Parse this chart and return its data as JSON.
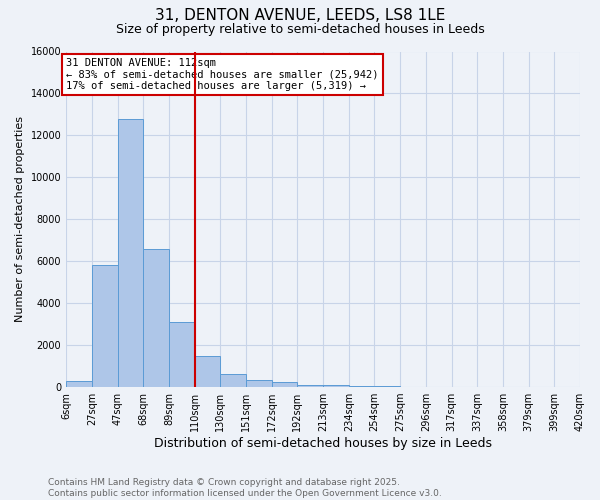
{
  "title": "31, DENTON AVENUE, LEEDS, LS8 1LE",
  "subtitle": "Size of property relative to semi-detached houses in Leeds",
  "xlabel": "Distribution of semi-detached houses by size in Leeds",
  "ylabel": "Number of semi-detached properties",
  "footer_line1": "Contains HM Land Registry data © Crown copyright and database right 2025.",
  "footer_line2": "Contains public sector information licensed under the Open Government Licence v3.0.",
  "bar_heights": [
    300,
    5800,
    12800,
    6600,
    3100,
    1500,
    620,
    320,
    220,
    120,
    90,
    60,
    50,
    0,
    0,
    0,
    0,
    0,
    0,
    0
  ],
  "tick_labels": [
    "6sqm",
    "27sqm",
    "47sqm",
    "68sqm",
    "89sqm",
    "110sqm",
    "130sqm",
    "151sqm",
    "172sqm",
    "192sqm",
    "213sqm",
    "234sqm",
    "254sqm",
    "275sqm",
    "296sqm",
    "317sqm",
    "337sqm",
    "358sqm",
    "379sqm",
    "399sqm",
    "420sqm"
  ],
  "bar_color": "#aec6e8",
  "bar_edge_color": "#5b9bd5",
  "grid_color": "#c8d4e8",
  "background_color": "#eef2f8",
  "annotation_box_color": "#ffffff",
  "annotation_border_color": "#cc0000",
  "vline_color": "#cc0000",
  "vline_bin": 5,
  "annotation_title": "31 DENTON AVENUE: 112sqm",
  "annotation_line1": "← 83% of semi-detached houses are smaller (25,942)",
  "annotation_line2": "17% of semi-detached houses are larger (5,319) →",
  "ylim": [
    0,
    16000
  ],
  "yticks": [
    0,
    2000,
    4000,
    6000,
    8000,
    10000,
    12000,
    14000,
    16000
  ],
  "title_fontsize": 11,
  "subtitle_fontsize": 9,
  "ylabel_fontsize": 8,
  "xlabel_fontsize": 9,
  "tick_fontsize": 7,
  "annotation_fontsize": 7.5,
  "footer_fontsize": 6.5
}
